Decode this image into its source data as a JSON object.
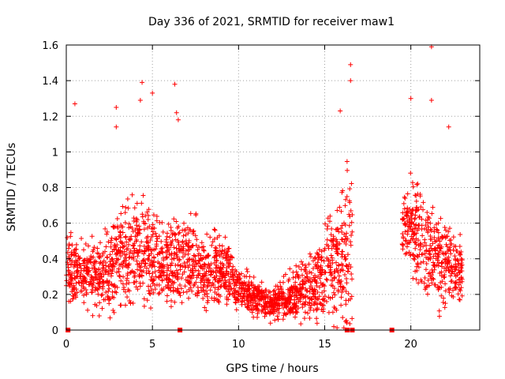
{
  "chart_data": {
    "type": "scatter",
    "title": "Day 336 of 2021, SRMTID for receiver maw1",
    "xlabel": "GPS time / hours",
    "ylabel": "SRMTID / TECUs",
    "xlim": [
      0,
      24
    ],
    "ylim": [
      0,
      1.6
    ],
    "xticks": [
      0,
      5,
      10,
      15,
      20
    ],
    "yticks": [
      0,
      0.2,
      0.4,
      0.6,
      0.8,
      1,
      1.2,
      1.4,
      1.6
    ],
    "ytick_labels": [
      "0",
      "0.2",
      "0.4",
      "0.6",
      "0.8",
      "1",
      "1.2",
      "1.4",
      "1.6"
    ],
    "grid": true,
    "marker": "+",
    "series_color": "#ff0000",
    "envelope": {
      "note": "approximate median and spread of the dense point cloud, sampled per hour",
      "hours": [
        0,
        1,
        2,
        3,
        4,
        5,
        6,
        7,
        8,
        9,
        10,
        11,
        12,
        13,
        14,
        15,
        16,
        16.6,
        18.8,
        19.5,
        20,
        21,
        22,
        23
      ],
      "median": [
        0.35,
        0.32,
        0.3,
        0.4,
        0.45,
        0.38,
        0.35,
        0.42,
        0.32,
        0.35,
        0.24,
        0.18,
        0.14,
        0.2,
        0.24,
        0.3,
        0.4,
        0.45,
        null,
        0.55,
        0.6,
        0.45,
        0.38,
        0.32
      ],
      "spread": [
        0.25,
        0.2,
        0.25,
        0.3,
        0.35,
        0.3,
        0.3,
        0.3,
        0.25,
        0.25,
        0.15,
        0.12,
        0.1,
        0.15,
        0.2,
        0.3,
        0.5,
        0.55,
        null,
        0.3,
        0.3,
        0.35,
        0.3,
        0.2
      ]
    },
    "notable_points": [
      {
        "x": 0.5,
        "y": 1.27
      },
      {
        "x": 2.9,
        "y": 1.25
      },
      {
        "x": 2.9,
        "y": 1.14
      },
      {
        "x": 4.4,
        "y": 1.39
      },
      {
        "x": 4.3,
        "y": 1.29
      },
      {
        "x": 5.0,
        "y": 1.33
      },
      {
        "x": 6.3,
        "y": 1.38
      },
      {
        "x": 6.4,
        "y": 1.22
      },
      {
        "x": 6.5,
        "y": 1.18
      },
      {
        "x": 15.9,
        "y": 1.23
      },
      {
        "x": 16.5,
        "y": 1.49
      },
      {
        "x": 16.5,
        "y": 1.4
      },
      {
        "x": 20.0,
        "y": 1.3
      },
      {
        "x": 21.2,
        "y": 1.59
      },
      {
        "x": 21.2,
        "y": 1.29
      },
      {
        "x": 22.2,
        "y": 1.14
      }
    ],
    "zero_markers": [
      0.1,
      6.6,
      16.3,
      16.6,
      18.9
    ]
  }
}
